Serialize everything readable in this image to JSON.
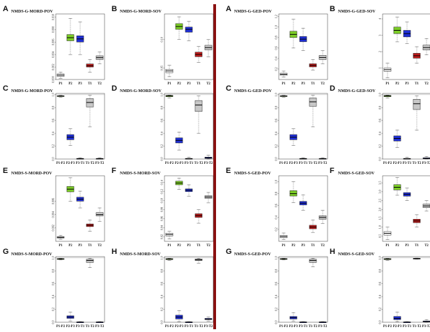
{
  "colors": {
    "P1": "#ffffff",
    "P2": "#7ccd27",
    "P3": "#1f2fd6",
    "T1": "#c01c1c",
    "T2": "#c8c8c8",
    "divider": "#8b1010",
    "ref_line": "#999999"
  },
  "groups": [
    {
      "id": "left",
      "panels": [
        {
          "letter": "A",
          "title": "NMDS-G-MORD-POV",
          "type": "sites",
          "ticks": [
            "0.000",
            "0.002",
            "0.004",
            "0.006",
            "0.008",
            "0.010"
          ]
        },
        {
          "letter": "B",
          "title": "NMDS-G-MORD-SOV",
          "type": "sites",
          "ticks": [
            "0.05",
            "0.10"
          ]
        },
        {
          "letter": "C",
          "title": "NMDS-G-MORD-POV",
          "type": "pairs",
          "ticks": [
            "0.0",
            "0.2",
            "0.4",
            "0.6",
            "0.8",
            "1.0"
          ]
        },
        {
          "letter": "D",
          "title": "NMDS-G-MORD-SOV",
          "type": "pairs",
          "ticks": [
            "0.0",
            "0.2",
            "0.4",
            "0.6",
            "0.8",
            "1.0"
          ]
        },
        {
          "letter": "E",
          "title": "NMDS-S-MORD-POV",
          "type": "sites",
          "ticks": [
            "0.002",
            "0.004",
            "0.006"
          ]
        },
        {
          "letter": "F",
          "title": "NMDS-S-MORD-SOV",
          "type": "sites",
          "ticks": [
            "0.02",
            "0.04",
            "0.06",
            "0.08",
            "0.10",
            "0.12",
            "0.14"
          ]
        },
        {
          "letter": "G",
          "title": "NMDS-S-MORD-POV",
          "type": "pairs",
          "ticks": [
            "0.0",
            "0.2",
            "0.4",
            "0.6",
            "0.8",
            "1.0"
          ]
        },
        {
          "letter": "H",
          "title": "NMDS-S-MORD-SOV",
          "type": "pairs",
          "ticks": [
            "0.0",
            "0.2",
            "0.4",
            "0.6",
            "0.8",
            "1.0"
          ]
        }
      ]
    },
    {
      "id": "right",
      "panels": [
        {
          "letter": "A",
          "title": "NMDS-G-GED-POV",
          "type": "sites",
          "ticks": [
            "0.2",
            "0.4",
            "0.6",
            "0.8",
            "1.0",
            "1.2"
          ]
        },
        {
          "letter": "B",
          "title": "NMDS-G-GED-SOV",
          "type": "sites",
          "ticks": [
            "1",
            "2",
            "3",
            "4"
          ]
        },
        {
          "letter": "C",
          "title": "NMDS-G-GED-POV",
          "type": "pairs",
          "ticks": [
            "0.0",
            "0.2",
            "0.4",
            "0.6",
            "0.8",
            "1.0"
          ]
        },
        {
          "letter": "D",
          "title": "NMDS-G-GED-SOV",
          "type": "pairs",
          "ticks": [
            "0.0",
            "0.2",
            "0.4",
            "0.6",
            "0.8",
            "1.0"
          ]
        },
        {
          "letter": "E",
          "title": "NMDS-S-GED-POV",
          "type": "sites",
          "ticks": [
            "0.2",
            "0.4",
            "0.6",
            "0.8",
            "1.0",
            "1.2"
          ]
        },
        {
          "letter": "F",
          "title": "NMDS-S-GED-SOV",
          "type": "sites",
          "ticks": [
            "0.5",
            "1.0",
            "1.5",
            "2.0",
            "2.5",
            "3.0",
            "3.5"
          ]
        },
        {
          "letter": "G",
          "title": "NMDS-S-GED-POV",
          "type": "pairs",
          "ticks": [
            "0.0",
            "0.2",
            "0.4",
            "0.6",
            "0.8",
            "1.0"
          ]
        },
        {
          "letter": "H",
          "title": "NMDS-S-GED-SOV",
          "type": "pairs",
          "ticks": [
            "0.0",
            "0.2",
            "0.4",
            "0.6",
            "0.8",
            "1.0"
          ]
        }
      ]
    }
  ],
  "chart_data": [
    {
      "type": "boxplot",
      "panel": "left-A",
      "title": "NMDS-G-MORD-POV",
      "categories": [
        "P1",
        "P2",
        "P3",
        "T1",
        "T2"
      ],
      "boxes": [
        {
          "low": 0.0002,
          "q1": 0.0005,
          "median": 0.0007,
          "q3": 0.0009,
          "high": 0.0012
        },
        {
          "low": 0.004,
          "q1": 0.0062,
          "median": 0.0067,
          "q3": 0.0072,
          "high": 0.0098
        },
        {
          "low": 0.004,
          "q1": 0.006,
          "median": 0.0065,
          "q3": 0.007,
          "high": 0.0092
        },
        {
          "low": 0.0012,
          "q1": 0.002,
          "median": 0.0022,
          "q3": 0.0025,
          "high": 0.0032
        },
        {
          "low": 0.0025,
          "q1": 0.0032,
          "median": 0.0035,
          "q3": 0.0038,
          "high": 0.0044
        }
      ],
      "ylim": [
        0,
        0.0105
      ]
    },
    {
      "type": "boxplot",
      "panel": "left-B",
      "title": "NMDS-G-MORD-SOV",
      "categories": [
        "P1",
        "P2",
        "P3",
        "T1",
        "T2"
      ],
      "boxes": [
        {
          "low": 0.035,
          "q1": 0.042,
          "median": 0.045,
          "q3": 0.048,
          "high": 0.055
        },
        {
          "low": 0.1,
          "q1": 0.118,
          "median": 0.123,
          "q3": 0.128,
          "high": 0.14
        },
        {
          "low": 0.098,
          "q1": 0.113,
          "median": 0.118,
          "q3": 0.122,
          "high": 0.132
        },
        {
          "low": 0.06,
          "q1": 0.07,
          "median": 0.074,
          "q3": 0.078,
          "high": 0.088
        },
        {
          "low": 0.07,
          "q1": 0.082,
          "median": 0.086,
          "q3": 0.09,
          "high": 0.1
        }
      ],
      "ylim": [
        0.03,
        0.145
      ]
    },
    {
      "type": "boxplot",
      "panel": "left-C",
      "title": "NMDS-G-MORD-POV",
      "categories": [
        "P1-P2",
        "P2-P3",
        "P3-T1",
        "T1-T2",
        "P3-T2"
      ],
      "boxes": [
        {
          "low": 0.96,
          "q1": 0.975,
          "median": 0.98,
          "q3": 0.985,
          "high": 0.99
        },
        {
          "low": 0.21,
          "q1": 0.3,
          "median": 0.34,
          "q3": 0.38,
          "high": 0.47
        },
        {
          "low": 0.0,
          "q1": 0.0,
          "median": 0.005,
          "q3": 0.01,
          "high": 0.02
        },
        {
          "low": 0.5,
          "q1": 0.81,
          "median": 0.88,
          "q3": 0.94,
          "high": 0.99
        },
        {
          "low": 0.0,
          "q1": 0.0,
          "median": 0.005,
          "q3": 0.01,
          "high": 0.02
        }
      ],
      "ylim": [
        0,
        1.02
      ]
    },
    {
      "type": "boxplot",
      "panel": "left-D",
      "title": "NMDS-G-MORD-SOV",
      "categories": [
        "P1-P2",
        "P2-P3",
        "P3-T1",
        "T1-T2",
        "P3-T2"
      ],
      "boxes": [
        {
          "low": 0.95,
          "q1": 0.97,
          "median": 0.98,
          "q3": 0.99,
          "high": 0.995
        },
        {
          "low": 0.14,
          "q1": 0.25,
          "median": 0.29,
          "q3": 0.33,
          "high": 0.42
        },
        {
          "low": 0.0,
          "q1": 0.0,
          "median": 0.005,
          "q3": 0.01,
          "high": 0.03
        },
        {
          "low": 0.4,
          "q1": 0.74,
          "median": 0.84,
          "q3": 0.91,
          "high": 0.98
        },
        {
          "low": 0.0,
          "q1": 0.01,
          "median": 0.02,
          "q3": 0.03,
          "high": 0.06
        }
      ],
      "ylim": [
        0,
        1.02
      ]
    },
    {
      "type": "boxplot",
      "panel": "left-E",
      "title": "NMDS-S-MORD-POV",
      "categories": [
        "P1",
        "P2",
        "P3",
        "T1",
        "T2"
      ],
      "boxes": [
        {
          "low": 0.0003,
          "q1": 0.0005,
          "median": 0.0006,
          "q3": 0.0007,
          "high": 0.0009
        },
        {
          "low": 0.006,
          "q1": 0.0074,
          "median": 0.0078,
          "q3": 0.0082,
          "high": 0.0095
        },
        {
          "low": 0.005,
          "q1": 0.006,
          "median": 0.0063,
          "q3": 0.0066,
          "high": 0.0075
        },
        {
          "low": 0.0015,
          "q1": 0.0022,
          "median": 0.0024,
          "q3": 0.0026,
          "high": 0.0032
        },
        {
          "low": 0.003,
          "q1": 0.0038,
          "median": 0.004,
          "q3": 0.0043,
          "high": 0.005
        }
      ],
      "ylim": [
        0,
        0.0098
      ]
    },
    {
      "type": "boxplot",
      "panel": "left-F",
      "title": "NMDS-S-MORD-SOV",
      "categories": [
        "P1",
        "P2",
        "P3",
        "T1",
        "T2"
      ],
      "boxes": [
        {
          "low": 0.015,
          "q1": 0.022,
          "median": 0.025,
          "q3": 0.028,
          "high": 0.032
        },
        {
          "low": 0.125,
          "q1": 0.135,
          "median": 0.139,
          "q3": 0.143,
          "high": 0.15
        },
        {
          "low": 0.11,
          "q1": 0.12,
          "median": 0.123,
          "q3": 0.126,
          "high": 0.135
        },
        {
          "low": 0.05,
          "q1": 0.063,
          "median": 0.067,
          "q3": 0.071,
          "high": 0.08
        },
        {
          "low": 0.095,
          "q1": 0.105,
          "median": 0.108,
          "q3": 0.111,
          "high": 0.118
        }
      ],
      "ylim": [
        0.01,
        0.155
      ]
    },
    {
      "type": "boxplot",
      "panel": "left-G",
      "title": "NMDS-S-MORD-POV",
      "categories": [
        "P1-P2",
        "P2-P3",
        "P3-T1",
        "T1-T2",
        "P3-T2"
      ],
      "boxes": [
        {
          "low": 0.97,
          "q1": 0.98,
          "median": 0.985,
          "q3": 0.99,
          "high": 0.995
        },
        {
          "low": 0.02,
          "q1": 0.06,
          "median": 0.08,
          "q3": 0.1,
          "high": 0.16
        },
        {
          "low": 0.0,
          "q1": 0.0,
          "median": 0.002,
          "q3": 0.005,
          "high": 0.01
        },
        {
          "low": 0.85,
          "q1": 0.93,
          "median": 0.96,
          "q3": 0.98,
          "high": 0.995
        },
        {
          "low": 0.0,
          "q1": 0.0,
          "median": 0.002,
          "q3": 0.005,
          "high": 0.01
        }
      ],
      "ylim": [
        0,
        1.02
      ]
    },
    {
      "type": "boxplot",
      "panel": "left-H",
      "title": "NMDS-S-MORD-SOV",
      "categories": [
        "P1-P2",
        "P2-P3",
        "P3-T1",
        "T1-T2",
        "P3-T2"
      ],
      "boxes": [
        {
          "low": 0.96,
          "q1": 0.975,
          "median": 0.98,
          "q3": 0.99,
          "high": 0.995
        },
        {
          "low": 0.01,
          "q1": 0.05,
          "median": 0.08,
          "q3": 0.11,
          "high": 0.18
        },
        {
          "low": 0.0,
          "q1": 0.0,
          "median": 0.002,
          "q3": 0.005,
          "high": 0.01
        },
        {
          "low": 0.92,
          "q1": 0.96,
          "median": 0.97,
          "q3": 0.985,
          "high": 0.995
        },
        {
          "low": 0.02,
          "q1": 0.04,
          "median": 0.05,
          "q3": 0.06,
          "high": 0.08
        }
      ],
      "ylim": [
        0,
        1.02
      ]
    },
    {
      "type": "boxplot",
      "panel": "right-A",
      "title": "NMDS-G-GED-POV",
      "categories": [
        "P1",
        "P2",
        "P3",
        "T1",
        "T2"
      ],
      "boxes": [
        {
          "low": 0.05,
          "q1": 0.08,
          "median": 0.1,
          "q3": 0.12,
          "high": 0.16
        },
        {
          "low": 0.6,
          "q1": 0.8,
          "median": 0.86,
          "q3": 0.92,
          "high": 1.15
        },
        {
          "low": 0.55,
          "q1": 0.72,
          "median": 0.77,
          "q3": 0.82,
          "high": 0.98
        },
        {
          "low": 0.18,
          "q1": 0.24,
          "median": 0.27,
          "q3": 0.3,
          "high": 0.38
        },
        {
          "low": 0.3,
          "q1": 0.38,
          "median": 0.42,
          "q3": 0.46,
          "high": 0.55
        }
      ],
      "ylim": [
        0,
        1.25
      ]
    },
    {
      "type": "boxplot",
      "panel": "right-B",
      "title": "NMDS-G-GED-SOV",
      "categories": [
        "P1",
        "P2",
        "P3",
        "T1",
        "T2"
      ],
      "boxes": [
        {
          "low": 0.4,
          "q1": 0.8,
          "median": 0.9,
          "q3": 1.0,
          "high": 1.3
        },
        {
          "low": 2.6,
          "q1": 3.1,
          "median": 3.3,
          "q3": 3.5,
          "high": 4.1
        },
        {
          "low": 2.5,
          "q1": 2.9,
          "median": 3.1,
          "q3": 3.3,
          "high": 3.8
        },
        {
          "low": 1.3,
          "q1": 1.6,
          "median": 1.75,
          "q3": 1.9,
          "high": 2.3
        },
        {
          "low": 1.8,
          "q1": 2.1,
          "median": 2.25,
          "q3": 2.4,
          "high": 2.8
        }
      ],
      "ylim": [
        0.3,
        4.3
      ]
    },
    {
      "type": "boxplot",
      "panel": "right-C",
      "title": "NMDS-G-GED-POV",
      "categories": [
        "P1-P2",
        "P2-P3",
        "P3-T1",
        "T1-T2",
        "P3-T2"
      ],
      "boxes": [
        {
          "low": 0.96,
          "q1": 0.975,
          "median": 0.98,
          "q3": 0.985,
          "high": 0.99
        },
        {
          "low": 0.21,
          "q1": 0.3,
          "median": 0.34,
          "q3": 0.38,
          "high": 0.47
        },
        {
          "low": 0.0,
          "q1": 0.0,
          "median": 0.005,
          "q3": 0.01,
          "high": 0.02
        },
        {
          "low": 0.5,
          "q1": 0.82,
          "median": 0.89,
          "q3": 0.95,
          "high": 0.99
        },
        {
          "low": 0.0,
          "q1": 0.0,
          "median": 0.005,
          "q3": 0.01,
          "high": 0.02
        }
      ],
      "ylim": [
        0,
        1.02
      ]
    },
    {
      "type": "boxplot",
      "panel": "right-D",
      "title": "NMDS-G-GED-SOV",
      "categories": [
        "P1-P2",
        "P2-P3",
        "P3-T1",
        "T1-T2",
        "P3-T2"
      ],
      "boxes": [
        {
          "low": 0.95,
          "q1": 0.97,
          "median": 0.98,
          "q3": 0.99,
          "high": 0.995
        },
        {
          "low": 0.18,
          "q1": 0.28,
          "median": 0.32,
          "q3": 0.36,
          "high": 0.45
        },
        {
          "low": 0.0,
          "q1": 0.0,
          "median": 0.005,
          "q3": 0.01,
          "high": 0.03
        },
        {
          "low": 0.45,
          "q1": 0.77,
          "median": 0.86,
          "q3": 0.93,
          "high": 0.98
        },
        {
          "low": 0.0,
          "q1": 0.005,
          "median": 0.01,
          "q3": 0.02,
          "high": 0.04
        }
      ],
      "ylim": [
        0,
        1.02
      ]
    },
    {
      "type": "boxplot",
      "panel": "right-E",
      "title": "NMDS-S-GED-POV",
      "categories": [
        "P1",
        "P2",
        "P3",
        "T1",
        "T2"
      ],
      "boxes": [
        {
          "low": 0.03,
          "q1": 0.06,
          "median": 0.08,
          "q3": 0.1,
          "high": 0.14
        },
        {
          "low": 0.65,
          "q1": 0.76,
          "median": 0.8,
          "q3": 0.85,
          "high": 1.0
        },
        {
          "low": 0.52,
          "q1": 0.61,
          "median": 0.64,
          "q3": 0.67,
          "high": 0.78
        },
        {
          "low": 0.15,
          "q1": 0.21,
          "median": 0.24,
          "q3": 0.27,
          "high": 0.36
        },
        {
          "low": 0.3,
          "q1": 0.37,
          "median": 0.4,
          "q3": 0.43,
          "high": 0.52
        }
      ],
      "ylim": [
        0,
        1.1
      ]
    },
    {
      "type": "boxplot",
      "panel": "right-F",
      "title": "NMDS-S-GED-SOV",
      "categories": [
        "P1",
        "P2",
        "P3",
        "T1",
        "T2"
      ],
      "boxes": [
        {
          "low": 0.3,
          "q1": 0.55,
          "median": 0.65,
          "q3": 0.75,
          "high": 1.0
        },
        {
          "low": 2.8,
          "q1": 3.1,
          "median": 3.25,
          "q3": 3.4,
          "high": 3.8
        },
        {
          "low": 2.5,
          "q1": 2.75,
          "median": 2.85,
          "q3": 2.95,
          "high": 3.2
        },
        {
          "low": 1.0,
          "q1": 1.25,
          "median": 1.35,
          "q3": 1.45,
          "high": 1.7
        },
        {
          "low": 1.9,
          "q1": 2.1,
          "median": 2.2,
          "q3": 2.3,
          "high": 2.5
        }
      ],
      "ylim": [
        0.2,
        3.9
      ]
    },
    {
      "type": "boxplot",
      "panel": "right-G",
      "title": "NMDS-S-GED-POV",
      "categories": [
        "P1-P2",
        "P2-P3",
        "P3-T1",
        "T1-T2",
        "P3-T2"
      ],
      "boxes": [
        {
          "low": 0.97,
          "q1": 0.98,
          "median": 0.985,
          "q3": 0.99,
          "high": 0.995
        },
        {
          "low": 0.02,
          "q1": 0.05,
          "median": 0.07,
          "q3": 0.09,
          "high": 0.15
        },
        {
          "low": 0.0,
          "q1": 0.0,
          "median": 0.002,
          "q3": 0.005,
          "high": 0.01
        },
        {
          "low": 0.86,
          "q1": 0.93,
          "median": 0.96,
          "q3": 0.98,
          "high": 0.995
        },
        {
          "low": 0.0,
          "q1": 0.0,
          "median": 0.002,
          "q3": 0.005,
          "high": 0.01
        }
      ],
      "ylim": [
        0,
        1.02
      ]
    },
    {
      "type": "boxplot",
      "panel": "right-H",
      "title": "NMDS-S-GED-SOV",
      "categories": [
        "P1-P2",
        "P2-P3",
        "P3-T1",
        "T1-T2",
        "P3-T2"
      ],
      "boxes": [
        {
          "low": 0.96,
          "q1": 0.975,
          "median": 0.98,
          "q3": 0.99,
          "high": 0.995
        },
        {
          "low": 0.01,
          "q1": 0.04,
          "median": 0.06,
          "q3": 0.09,
          "high": 0.16
        },
        {
          "low": 0.0,
          "q1": 0.0,
          "median": 0.002,
          "q3": 0.005,
          "high": 0.01
        },
        {
          "low": 0.98,
          "q1": 0.985,
          "median": 0.99,
          "q3": 0.995,
          "high": 0.998
        },
        {
          "low": 0.0,
          "q1": 0.005,
          "median": 0.01,
          "q3": 0.02,
          "high": 0.04
        }
      ],
      "ylim": [
        0,
        1.02
      ]
    }
  ]
}
